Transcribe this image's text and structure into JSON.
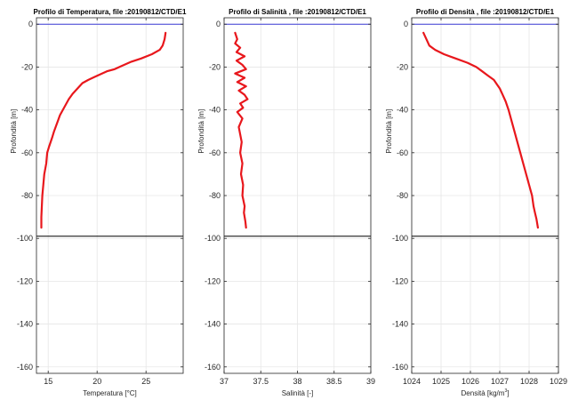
{
  "colors": {
    "profile": "#e8171c",
    "surface_line": "#3a3ad6",
    "bottom_line": "#000000",
    "grid": "#e6e6e6",
    "axis": "#262626"
  },
  "chart_data": [
    {
      "type": "line",
      "title": "Profilo di Temperatura, file :20190812/CTD/E1",
      "xlabel": "Temperatura [°C]",
      "ylabel": "Profondità  [m]",
      "xlim": [
        13.8,
        28.8
      ],
      "ylim": [
        -163,
        3
      ],
      "xticks": [
        15,
        20,
        25
      ],
      "yticks": [
        0,
        -20,
        -40,
        -60,
        -80,
        -100,
        -120,
        -140,
        -160
      ],
      "grid": true,
      "reference_lines": [
        0,
        -99
      ],
      "series": [
        {
          "x": [
            27.0,
            26.9,
            26.7,
            26.4,
            25.6,
            24.5,
            23.5,
            22.5,
            21.8,
            21.0,
            20.5,
            19.8,
            19.1,
            18.5,
            18.0,
            17.5,
            17.1,
            16.8,
            16.5,
            16.2,
            16.0,
            15.8,
            15.6,
            15.4,
            15.1,
            14.9,
            14.8,
            14.6,
            14.5,
            14.4,
            14.3,
            14.3
          ],
          "y": [
            -4,
            -7,
            -10,
            -12,
            -14,
            -16,
            -17.5,
            -19.5,
            -21,
            -22,
            -23,
            -24.5,
            -26,
            -27.5,
            -30,
            -32.5,
            -35,
            -37.5,
            -40,
            -42.5,
            -45,
            -47.5,
            -50,
            -53,
            -57,
            -60,
            -65,
            -70,
            -75,
            -80,
            -90,
            -95
          ]
        }
      ]
    },
    {
      "type": "line",
      "title": "Profilo di Salinità , file :20190812/CTD/E1",
      "xlabel": "Salinità [-]",
      "ylabel": "Profondità  [m]",
      "xlim": [
        37,
        39
      ],
      "ylim": [
        -163,
        3
      ],
      "xticks": [
        37,
        37.5,
        38,
        38.5,
        39
      ],
      "yticks": [
        0,
        -20,
        -40,
        -60,
        -80,
        -100,
        -120,
        -140,
        -160
      ],
      "grid": true,
      "reference_lines": [
        0,
        -99
      ],
      "series": [
        {
          "x": [
            37.15,
            37.18,
            37.15,
            37.22,
            37.17,
            37.28,
            37.17,
            37.25,
            37.3,
            37.15,
            37.28,
            37.18,
            37.3,
            37.2,
            37.28,
            37.32,
            37.22,
            37.26,
            37.18,
            37.25,
            37.2,
            37.24,
            37.22,
            37.25,
            37.23,
            37.26,
            37.25,
            37.28,
            37.27,
            37.29,
            37.3
          ],
          "y": [
            -4,
            -7,
            -9,
            -11,
            -13,
            -15,
            -17,
            -19,
            -21,
            -23,
            -25,
            -27,
            -29,
            -31,
            -33,
            -35,
            -37,
            -39,
            -41,
            -44,
            -48,
            -55,
            -60,
            -65,
            -70,
            -75,
            -80,
            -85,
            -88,
            -92,
            -95
          ]
        }
      ]
    },
    {
      "type": "line",
      "title": "Profilo di Densità , file :20190812/CTD/E1",
      "xlabel": "Densità [kg/m3]",
      "ylabel": "Profondità  [m]",
      "xlim": [
        1024,
        1029
      ],
      "ylim": [
        -163,
        3
      ],
      "xticks": [
        1024,
        1025,
        1026,
        1027,
        1028,
        1029
      ],
      "yticks": [
        0,
        -20,
        -40,
        -60,
        -80,
        -100,
        -120,
        -140,
        -160
      ],
      "grid": true,
      "reference_lines": [
        0,
        -99
      ],
      "series": [
        {
          "x": [
            1024.4,
            1024.5,
            1024.6,
            1024.8,
            1025.1,
            1025.5,
            1025.9,
            1026.2,
            1026.4,
            1026.6,
            1026.8,
            1026.9,
            1027.0,
            1027.1,
            1027.2,
            1027.3,
            1027.4,
            1027.5,
            1027.6,
            1027.7,
            1027.8,
            1027.9,
            1028.0,
            1028.1,
            1028.15,
            1028.2,
            1028.25,
            1028.3
          ],
          "y": [
            -4,
            -7,
            -10,
            -12,
            -14,
            -16,
            -18,
            -20,
            -22,
            -24,
            -26,
            -28,
            -30,
            -33,
            -36,
            -40,
            -45,
            -50,
            -55,
            -60,
            -65,
            -70,
            -75,
            -80,
            -85,
            -88,
            -91,
            -95
          ]
        }
      ]
    }
  ]
}
